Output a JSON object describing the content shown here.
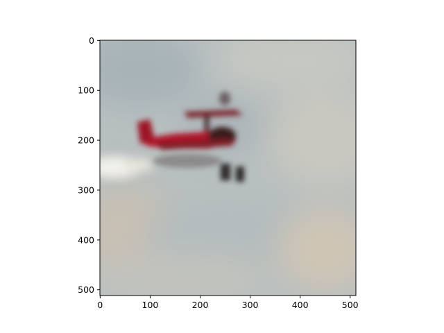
{
  "image": {
    "subject": "red biplane",
    "colors": {
      "sky_light": "#c3c7c2",
      "sky_blue": "#9eacb2",
      "sky_warm": "#cfc5b5",
      "plane_red": "#b0142a",
      "plane_dark": "#3a1a1e",
      "smoke": "#eeeeea",
      "axis": "#000000"
    },
    "extent": {
      "x": [
        0,
        512
      ],
      "y": [
        512,
        0
      ]
    }
  },
  "x_axis": {
    "ticks": [
      {
        "value": 0,
        "label": "0"
      },
      {
        "value": 100,
        "label": "100"
      },
      {
        "value": 200,
        "label": "200"
      },
      {
        "value": 300,
        "label": "300"
      },
      {
        "value": 400,
        "label": "400"
      },
      {
        "value": 500,
        "label": "500"
      }
    ]
  },
  "y_axis": {
    "ticks": [
      {
        "value": 0,
        "label": "0"
      },
      {
        "value": 100,
        "label": "100"
      },
      {
        "value": 200,
        "label": "200"
      },
      {
        "value": 300,
        "label": "300"
      },
      {
        "value": 400,
        "label": "400"
      },
      {
        "value": 500,
        "label": "500"
      }
    ]
  }
}
